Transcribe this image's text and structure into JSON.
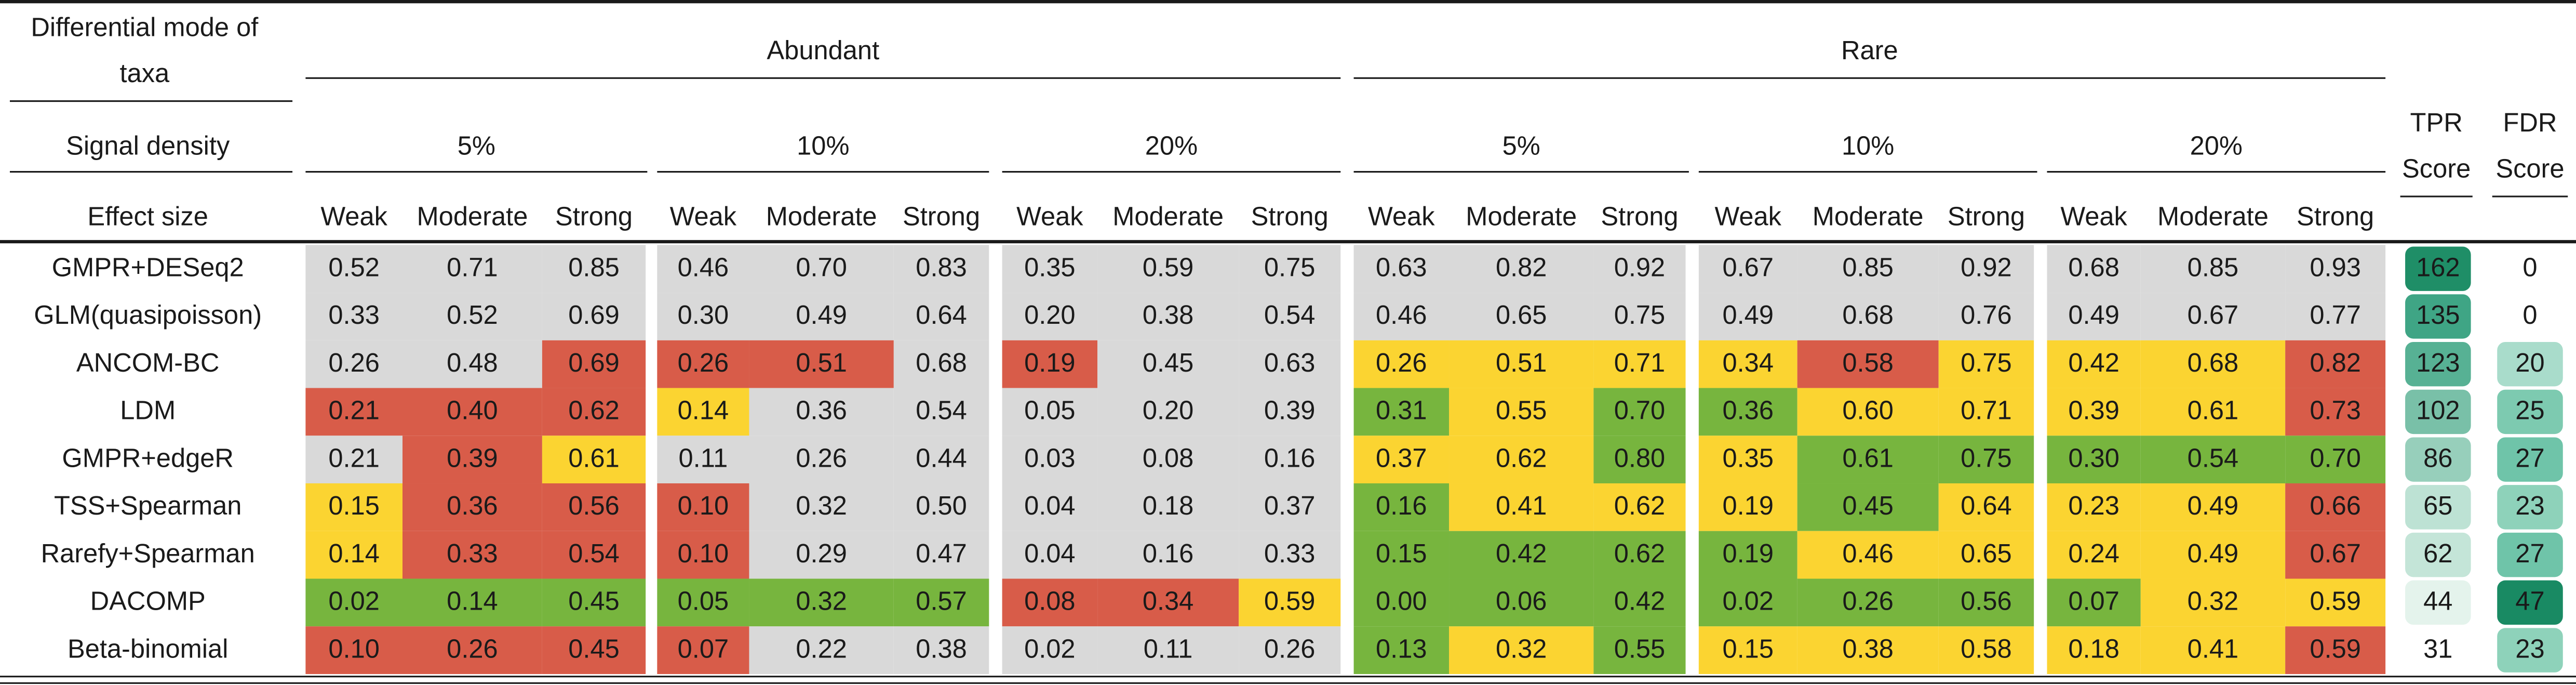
{
  "header": {
    "taxa_label_line1": "Differential mode of",
    "taxa_label_line2": "taxa",
    "signal_label": "Signal density",
    "effect_label": "Effect size",
    "groups": [
      "Abundant",
      "Rare"
    ],
    "densities": [
      "5%",
      "10%",
      "20%"
    ],
    "effects": [
      "Weak",
      "Moderate",
      "Strong"
    ],
    "tpr_line1": "TPR",
    "tpr_line2": "Score",
    "fdr_line1": "FDR",
    "fdr_line2": "Score"
  },
  "colors": {
    "grey": "#d9d9d9",
    "red": "#d85c49",
    "yellow": "#fbd431",
    "green": "#77b53e",
    "white": "#ffffff"
  },
  "rows": [
    {
      "method": "GMPR+DESeq2",
      "values": [
        "0.52",
        "0.71",
        "0.85",
        "0.46",
        "0.70",
        "0.83",
        "0.35",
        "0.59",
        "0.75",
        "0.63",
        "0.82",
        "0.92",
        "0.67",
        "0.85",
        "0.92",
        "0.68",
        "0.85",
        "0.93"
      ],
      "colors": [
        "grey",
        "grey",
        "grey",
        "grey",
        "grey",
        "grey",
        "grey",
        "grey",
        "grey",
        "grey",
        "grey",
        "grey",
        "grey",
        "grey",
        "grey",
        "grey",
        "grey",
        "grey"
      ],
      "tpr": "162",
      "fdr": "0",
      "tpr_bg": "#1f8e67",
      "fdr_bg": "none"
    },
    {
      "method": "GLM(quasipoisson)",
      "values": [
        "0.33",
        "0.52",
        "0.69",
        "0.30",
        "0.49",
        "0.64",
        "0.20",
        "0.38",
        "0.54",
        "0.46",
        "0.65",
        "0.75",
        "0.49",
        "0.68",
        "0.76",
        "0.49",
        "0.67",
        "0.77"
      ],
      "colors": [
        "grey",
        "grey",
        "grey",
        "grey",
        "grey",
        "grey",
        "grey",
        "grey",
        "grey",
        "grey",
        "grey",
        "grey",
        "grey",
        "grey",
        "grey",
        "grey",
        "grey",
        "grey"
      ],
      "tpr": "135",
      "fdr": "0",
      "tpr_bg": "#3fa585",
      "fdr_bg": "none"
    },
    {
      "method": "ANCOM-BC",
      "values": [
        "0.26",
        "0.48",
        "0.69",
        "0.26",
        "0.51",
        "0.68",
        "0.19",
        "0.45",
        "0.63",
        "0.26",
        "0.51",
        "0.71",
        "0.34",
        "0.58",
        "0.75",
        "0.42",
        "0.68",
        "0.82"
      ],
      "colors": [
        "grey",
        "grey",
        "red",
        "red",
        "red",
        "grey",
        "red",
        "grey",
        "grey",
        "yellow",
        "yellow",
        "yellow",
        "yellow",
        "red",
        "yellow",
        "yellow",
        "yellow",
        "red"
      ],
      "tpr": "123",
      "fdr": "20",
      "tpr_bg": "#57b194",
      "fdr_bg": "#a9dccb"
    },
    {
      "method": "LDM",
      "values": [
        "0.21",
        "0.40",
        "0.62",
        "0.14",
        "0.36",
        "0.54",
        "0.05",
        "0.20",
        "0.39",
        "0.31",
        "0.55",
        "0.70",
        "0.36",
        "0.60",
        "0.71",
        "0.39",
        "0.61",
        "0.73"
      ],
      "colors": [
        "red",
        "red",
        "red",
        "yellow",
        "grey",
        "grey",
        "grey",
        "grey",
        "grey",
        "green",
        "yellow",
        "green",
        "green",
        "yellow",
        "yellow",
        "yellow",
        "yellow",
        "red"
      ],
      "tpr": "102",
      "fdr": "25",
      "tpr_bg": "#79c0a8",
      "fdr_bg": "#7dcab0"
    },
    {
      "method": "GMPR+edgeR",
      "values": [
        "0.21",
        "0.39",
        "0.61",
        "0.11",
        "0.26",
        "0.44",
        "0.03",
        "0.08",
        "0.16",
        "0.37",
        "0.62",
        "0.80",
        "0.35",
        "0.61",
        "0.75",
        "0.30",
        "0.54",
        "0.70"
      ],
      "colors": [
        "grey",
        "red",
        "yellow",
        "grey",
        "grey",
        "grey",
        "grey",
        "grey",
        "grey",
        "yellow",
        "yellow",
        "green",
        "yellow",
        "green",
        "green",
        "green",
        "green",
        "green"
      ],
      "tpr": "86",
      "fdr": "27",
      "tpr_bg": "#97cfbb",
      "fdr_bg": "#6fc4a9"
    },
    {
      "method": "TSS+Spearman",
      "values": [
        "0.15",
        "0.36",
        "0.56",
        "0.10",
        "0.32",
        "0.50",
        "0.04",
        "0.18",
        "0.37",
        "0.16",
        "0.41",
        "0.62",
        "0.19",
        "0.45",
        "0.64",
        "0.23",
        "0.49",
        "0.66"
      ],
      "colors": [
        "yellow",
        "red",
        "red",
        "red",
        "grey",
        "grey",
        "grey",
        "grey",
        "grey",
        "green",
        "yellow",
        "yellow",
        "yellow",
        "green",
        "yellow",
        "yellow",
        "yellow",
        "red"
      ],
      "tpr": "65",
      "fdr": "23",
      "tpr_bg": "#bde2d4",
      "fdr_bg": "#8ed2ba"
    },
    {
      "method": "Rarefy+Spearman",
      "values": [
        "0.14",
        "0.33",
        "0.54",
        "0.10",
        "0.29",
        "0.47",
        "0.04",
        "0.16",
        "0.33",
        "0.15",
        "0.42",
        "0.62",
        "0.19",
        "0.46",
        "0.65",
        "0.24",
        "0.49",
        "0.67"
      ],
      "colors": [
        "yellow",
        "red",
        "red",
        "red",
        "grey",
        "grey",
        "grey",
        "grey",
        "grey",
        "green",
        "green",
        "green",
        "green",
        "yellow",
        "yellow",
        "yellow",
        "yellow",
        "red"
      ],
      "tpr": "62",
      "fdr": "27",
      "tpr_bg": "#c4e5d8",
      "fdr_bg": "#6fc4a9"
    },
    {
      "method": "DACOMP",
      "values": [
        "0.02",
        "0.14",
        "0.45",
        "0.05",
        "0.32",
        "0.57",
        "0.08",
        "0.34",
        "0.59",
        "0.00",
        "0.06",
        "0.42",
        "0.02",
        "0.26",
        "0.56",
        "0.07",
        "0.32",
        "0.59"
      ],
      "colors": [
        "green",
        "green",
        "green",
        "green",
        "green",
        "green",
        "red",
        "red",
        "yellow",
        "green",
        "green",
        "green",
        "green",
        "green",
        "green",
        "green",
        "yellow",
        "yellow"
      ],
      "tpr": "44",
      "fdr": "47",
      "tpr_bg": "#e4f3ec",
      "fdr_bg": "#198a63"
    },
    {
      "method": "Beta-binomial",
      "values": [
        "0.10",
        "0.26",
        "0.45",
        "0.07",
        "0.22",
        "0.38",
        "0.02",
        "0.11",
        "0.26",
        "0.13",
        "0.32",
        "0.55",
        "0.15",
        "0.38",
        "0.58",
        "0.18",
        "0.41",
        "0.59"
      ],
      "colors": [
        "red",
        "red",
        "red",
        "red",
        "grey",
        "grey",
        "grey",
        "grey",
        "grey",
        "green",
        "yellow",
        "green",
        "yellow",
        "yellow",
        "yellow",
        "yellow",
        "yellow",
        "red"
      ],
      "tpr": "31",
      "fdr": "23",
      "tpr_bg": "none",
      "fdr_bg": "#8ed2ba"
    }
  ]
}
